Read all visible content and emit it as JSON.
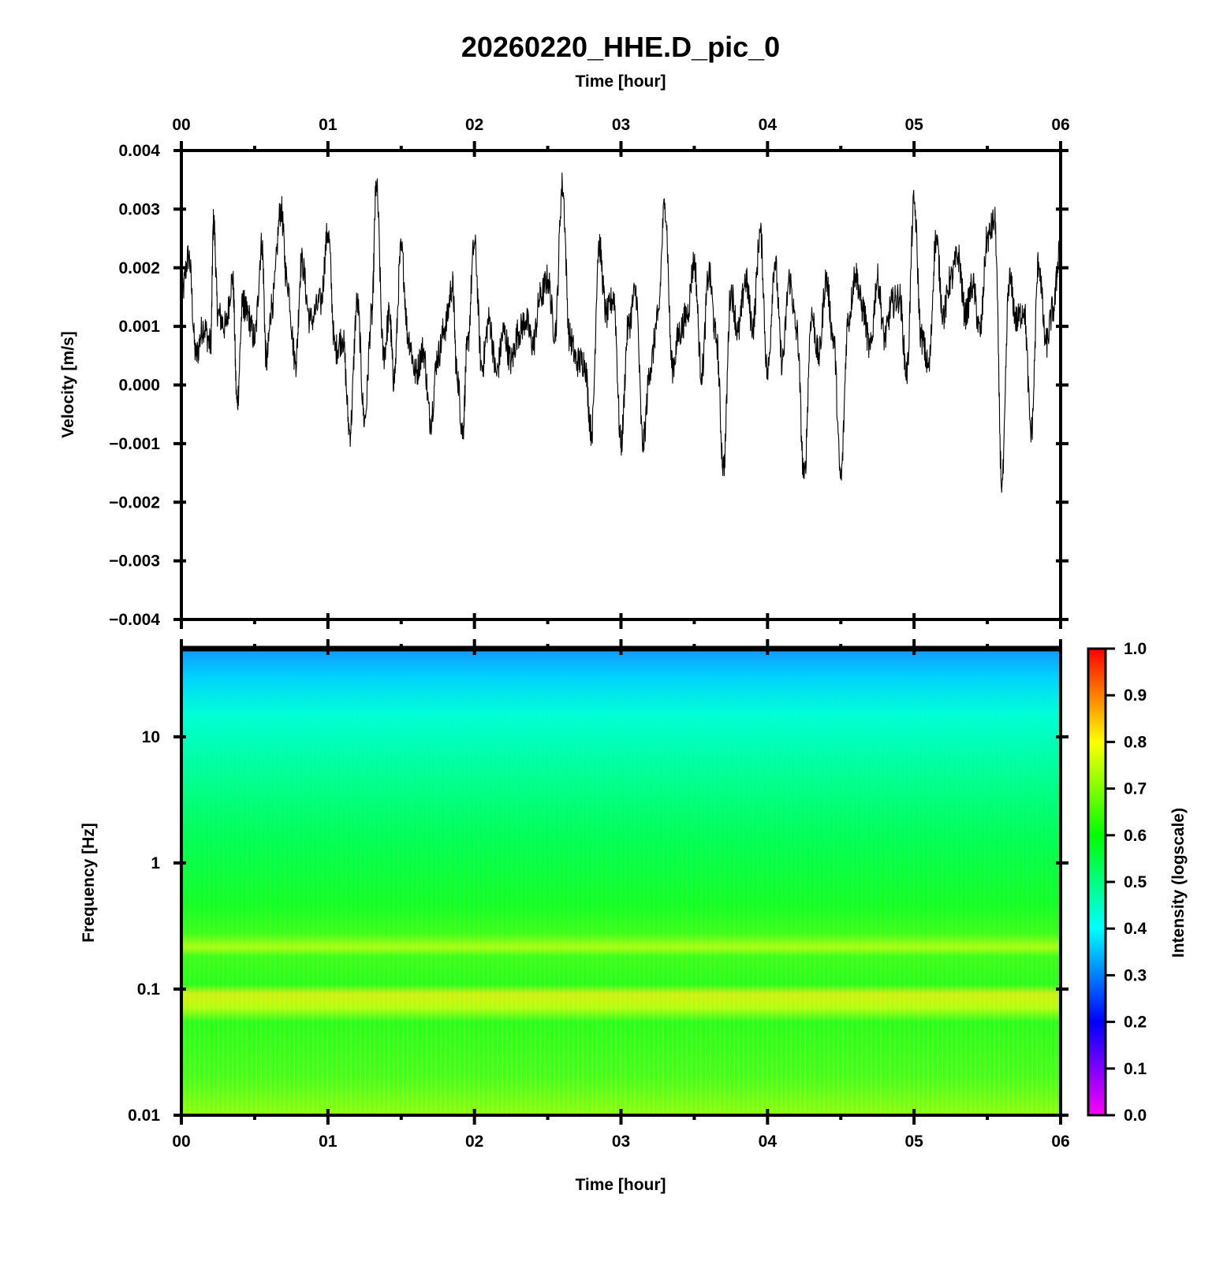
{
  "figure": {
    "title": "20260220_HHE.D_pic_0",
    "top_axis_label": "Time [hour]",
    "bottom_axis_label": "Time [hour]"
  },
  "chart_data": [
    {
      "type": "line",
      "panel": "waveform",
      "ylabel": "Velocity [m/s]",
      "xlim": [
        0,
        6
      ],
      "ylim": [
        -0.004,
        0.004
      ],
      "x_ticks": [
        "00",
        "01",
        "02",
        "03",
        "04",
        "05",
        "06"
      ],
      "y_ticks": [
        "0.004",
        "0.003",
        "0.002",
        "0.001",
        "0.000",
        "−0.001",
        "−0.002",
        "−0.003",
        "−0.004"
      ],
      "series": [
        {
          "color": "#000000",
          "x": [
            0.0,
            0.05,
            0.1,
            0.15,
            0.2,
            0.22,
            0.25,
            0.3,
            0.35,
            0.38,
            0.42,
            0.45,
            0.5,
            0.55,
            0.58,
            0.62,
            0.68,
            0.72,
            0.78,
            0.82,
            0.88,
            0.95,
            1.0,
            1.05,
            1.1,
            1.15,
            1.2,
            1.25,
            1.3,
            1.33,
            1.38,
            1.42,
            1.45,
            1.5,
            1.55,
            1.6,
            1.65,
            1.7,
            1.75,
            1.8,
            1.85,
            1.88,
            1.92,
            1.95,
            2.0,
            2.05,
            2.1,
            2.15,
            2.2,
            2.25,
            2.3,
            2.35,
            2.4,
            2.45,
            2.5,
            2.55,
            2.6,
            2.65,
            2.7,
            2.75,
            2.8,
            2.85,
            2.9,
            2.95,
            3.0,
            3.05,
            3.1,
            3.15,
            3.2,
            3.25,
            3.3,
            3.35,
            3.4,
            3.45,
            3.5,
            3.55,
            3.6,
            3.65,
            3.7,
            3.75,
            3.8,
            3.85,
            3.9,
            3.95,
            4.0,
            4.05,
            4.1,
            4.15,
            4.2,
            4.25,
            4.3,
            4.35,
            4.4,
            4.45,
            4.5,
            4.55,
            4.6,
            4.65,
            4.7,
            4.75,
            4.8,
            4.85,
            4.9,
            4.95,
            5.0,
            5.05,
            5.1,
            5.15,
            5.2,
            5.25,
            5.3,
            5.35,
            5.4,
            5.45,
            5.5,
            5.55,
            5.6,
            5.65,
            5.7,
            5.75,
            5.8,
            5.85,
            5.9,
            5.95,
            6.0
          ],
          "y": [
            0.0015,
            0.0022,
            0.0005,
            0.001,
            0.0007,
            0.0028,
            0.0012,
            0.001,
            0.0018,
            -0.0003,
            0.0014,
            0.0012,
            0.0008,
            0.0024,
            0.0004,
            0.0014,
            0.003,
            0.0018,
            0.0004,
            0.0021,
            0.0011,
            0.0014,
            0.0026,
            0.0006,
            0.0008,
            -0.0008,
            0.0014,
            -0.0006,
            0.0012,
            0.0034,
            0.0005,
            0.0012,
            0.0001,
            0.0023,
            0.0008,
            0.0002,
            0.0006,
            -0.0006,
            0.0005,
            0.001,
            0.0017,
            0.0002,
            -0.0008,
            0.0006,
            0.0024,
            0.0003,
            0.0011,
            0.0002,
            0.0009,
            0.0004,
            0.0009,
            0.0011,
            0.0007,
            0.0015,
            0.0018,
            0.0009,
            0.0034,
            0.0008,
            0.0004,
            0.0004,
            -0.0008,
            0.0024,
            0.0012,
            0.0015,
            -0.001,
            0.001,
            0.0016,
            -0.001,
            0.0003,
            0.0011,
            0.0031,
            0.0003,
            0.0009,
            0.0012,
            0.0021,
            0.0002,
            0.0019,
            0.0008,
            -0.0014,
            0.0016,
            0.0009,
            0.0018,
            0.001,
            0.0026,
            0.0002,
            0.0021,
            0.0004,
            0.0018,
            0.0009,
            -0.0016,
            0.0012,
            0.0005,
            0.0018,
            0.0008,
            -0.0016,
            0.0011,
            0.0019,
            0.0013,
            0.0006,
            0.0018,
            0.0008,
            0.0014,
            0.0015,
            0.0002,
            0.0031,
            0.0008,
            0.0003,
            0.0025,
            0.0012,
            0.0018,
            0.0022,
            0.0012,
            0.0017,
            0.0009,
            0.0025,
            0.0028,
            -0.0017,
            0.0018,
            0.0011,
            0.0013,
            -0.0008,
            0.0021,
            0.0007,
            0.0013,
            0.0025
          ]
        }
      ]
    },
    {
      "type": "heatmap",
      "panel": "spectrogram",
      "ylabel": "Frequency [Hz]",
      "yscale": "log",
      "xlim": [
        0,
        6
      ],
      "ylim": [
        0.01,
        50
      ],
      "x_ticks": [
        "00",
        "01",
        "02",
        "03",
        "04",
        "05",
        "06"
      ],
      "y_ticks": [
        "10",
        "1",
        "0.1",
        "0.01"
      ],
      "intensity_profile": {
        "frequency": [
          0.01,
          0.03,
          0.1,
          0.2,
          0.4,
          1,
          3,
          10,
          25,
          50
        ],
        "intensity": [
          0.66,
          0.63,
          0.61,
          0.7,
          0.66,
          0.59,
          0.55,
          0.5,
          0.42,
          0.33
        ]
      },
      "colorbar": {
        "label": "Intensity (logscale)",
        "range": [
          0.0,
          1.0
        ],
        "ticks": [
          "1.0",
          "0.9",
          "0.8",
          "0.7",
          "0.6",
          "0.5",
          "0.4",
          "0.3",
          "0.2",
          "0.1",
          "0.0"
        ],
        "colors": [
          "#ff00ff",
          "#0000ff",
          "#00ffff",
          "#00ff00",
          "#ffff00",
          "#ff0000"
        ]
      }
    }
  ]
}
